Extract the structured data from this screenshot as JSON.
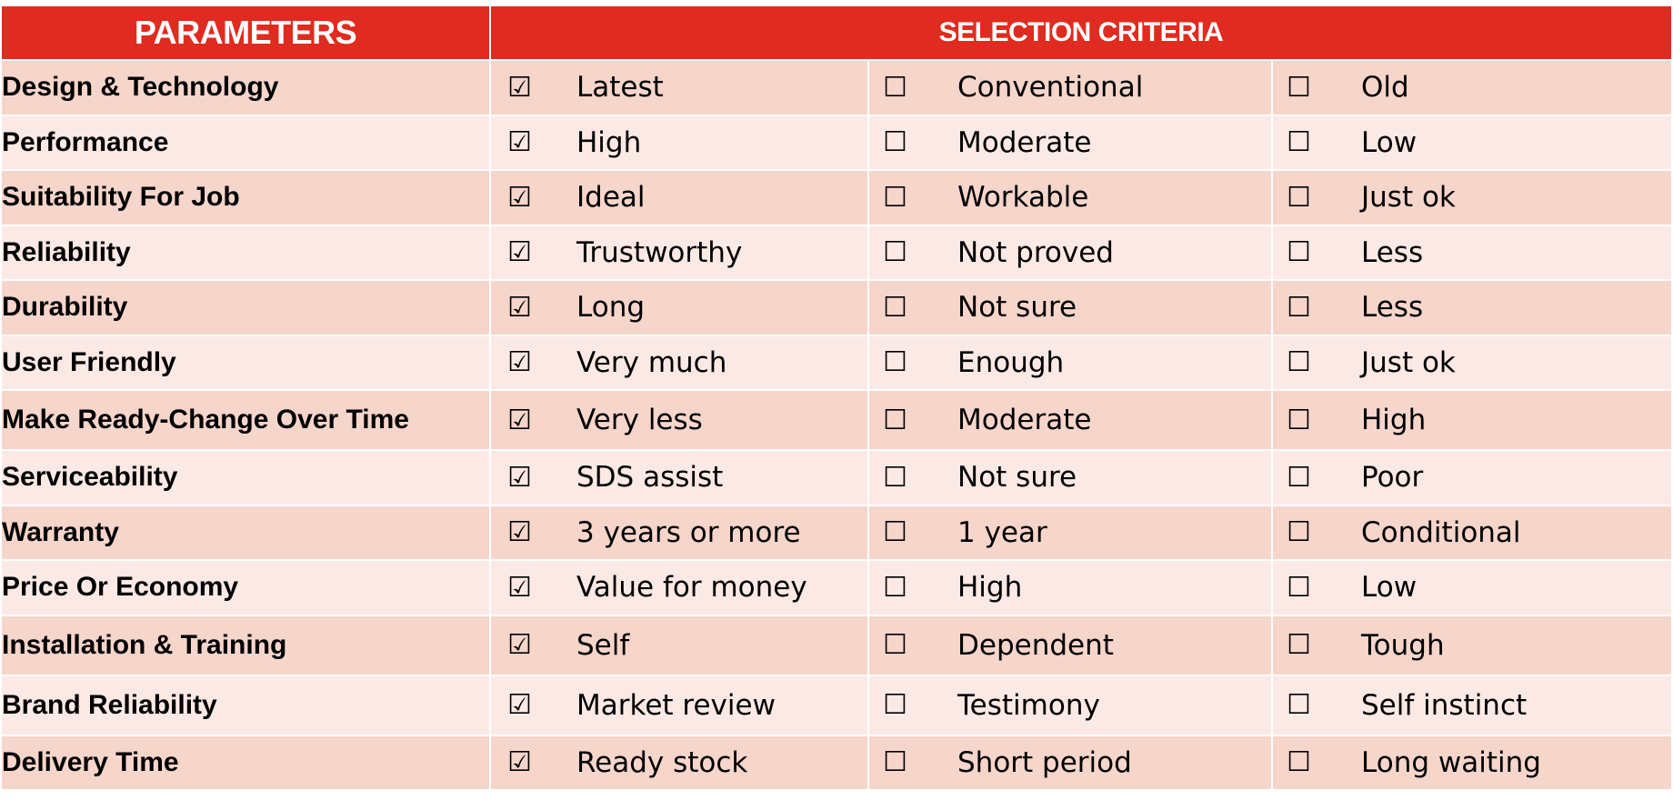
{
  "header": {
    "parameters": "PARAMETERS",
    "selection_criteria": "SELECTION CRITERIA"
  },
  "icons": {
    "checked": "☑",
    "unchecked": "☐"
  },
  "colors": {
    "header_bg": "#e02b20",
    "row_dark": "#f6d5cb",
    "row_light": "#fbe9e5"
  },
  "rows": [
    {
      "parameter": "Design & Technology",
      "options": [
        {
          "label": "Latest",
          "checked": true
        },
        {
          "label": "Conventional",
          "checked": false
        },
        {
          "label": "Old",
          "checked": false
        }
      ]
    },
    {
      "parameter": "Performance",
      "options": [
        {
          "label": "High",
          "checked": true
        },
        {
          "label": "Moderate",
          "checked": false
        },
        {
          "label": "Low",
          "checked": false
        }
      ]
    },
    {
      "parameter": "Suitability For Job",
      "options": [
        {
          "label": "Ideal",
          "checked": true
        },
        {
          "label": "Workable",
          "checked": false
        },
        {
          "label": "Just ok",
          "checked": false
        }
      ]
    },
    {
      "parameter": "Reliability",
      "options": [
        {
          "label": "Trustworthy",
          "checked": true
        },
        {
          "label": "Not proved",
          "checked": false
        },
        {
          "label": "Less",
          "checked": false
        }
      ]
    },
    {
      "parameter": "Durability",
      "options": [
        {
          "label": "Long",
          "checked": true
        },
        {
          "label": "Not sure",
          "checked": false
        },
        {
          "label": "Less",
          "checked": false
        }
      ]
    },
    {
      "parameter": "User Friendly",
      "options": [
        {
          "label": "Very much",
          "checked": true
        },
        {
          "label": "Enough",
          "checked": false
        },
        {
          "label": "Just ok",
          "checked": false
        }
      ]
    },
    {
      "parameter": "Make Ready-Change Over Time",
      "options": [
        {
          "label": "Very less",
          "checked": true
        },
        {
          "label": "Moderate",
          "checked": false
        },
        {
          "label": "High",
          "checked": false
        }
      ]
    },
    {
      "parameter": "Serviceability",
      "options": [
        {
          "label": "SDS assist",
          "checked": true
        },
        {
          "label": "Not sure",
          "checked": false
        },
        {
          "label": "Poor",
          "checked": false
        }
      ]
    },
    {
      "parameter": "Warranty",
      "options": [
        {
          "label": "3 years or more",
          "checked": true
        },
        {
          "label": "1 year",
          "checked": false
        },
        {
          "label": "Conditional",
          "checked": false
        }
      ]
    },
    {
      "parameter": "Price Or Economy",
      "options": [
        {
          "label": "Value for money",
          "checked": true
        },
        {
          "label": "High",
          "checked": false
        },
        {
          "label": "Low",
          "checked": false
        }
      ]
    },
    {
      "parameter": "Installation & Training",
      "options": [
        {
          "label": "Self",
          "checked": true
        },
        {
          "label": "Dependent",
          "checked": false
        },
        {
          "label": "Tough",
          "checked": false
        }
      ]
    },
    {
      "parameter": "Brand Reliability",
      "options": [
        {
          "label": "Market review",
          "checked": true
        },
        {
          "label": "Testimony",
          "checked": false
        },
        {
          "label": "Self instinct",
          "checked": false
        }
      ]
    },
    {
      "parameter": "Delivery Time",
      "options": [
        {
          "label": "Ready stock",
          "checked": true
        },
        {
          "label": "Short period",
          "checked": false
        },
        {
          "label": "Long waiting",
          "checked": false
        }
      ]
    }
  ]
}
